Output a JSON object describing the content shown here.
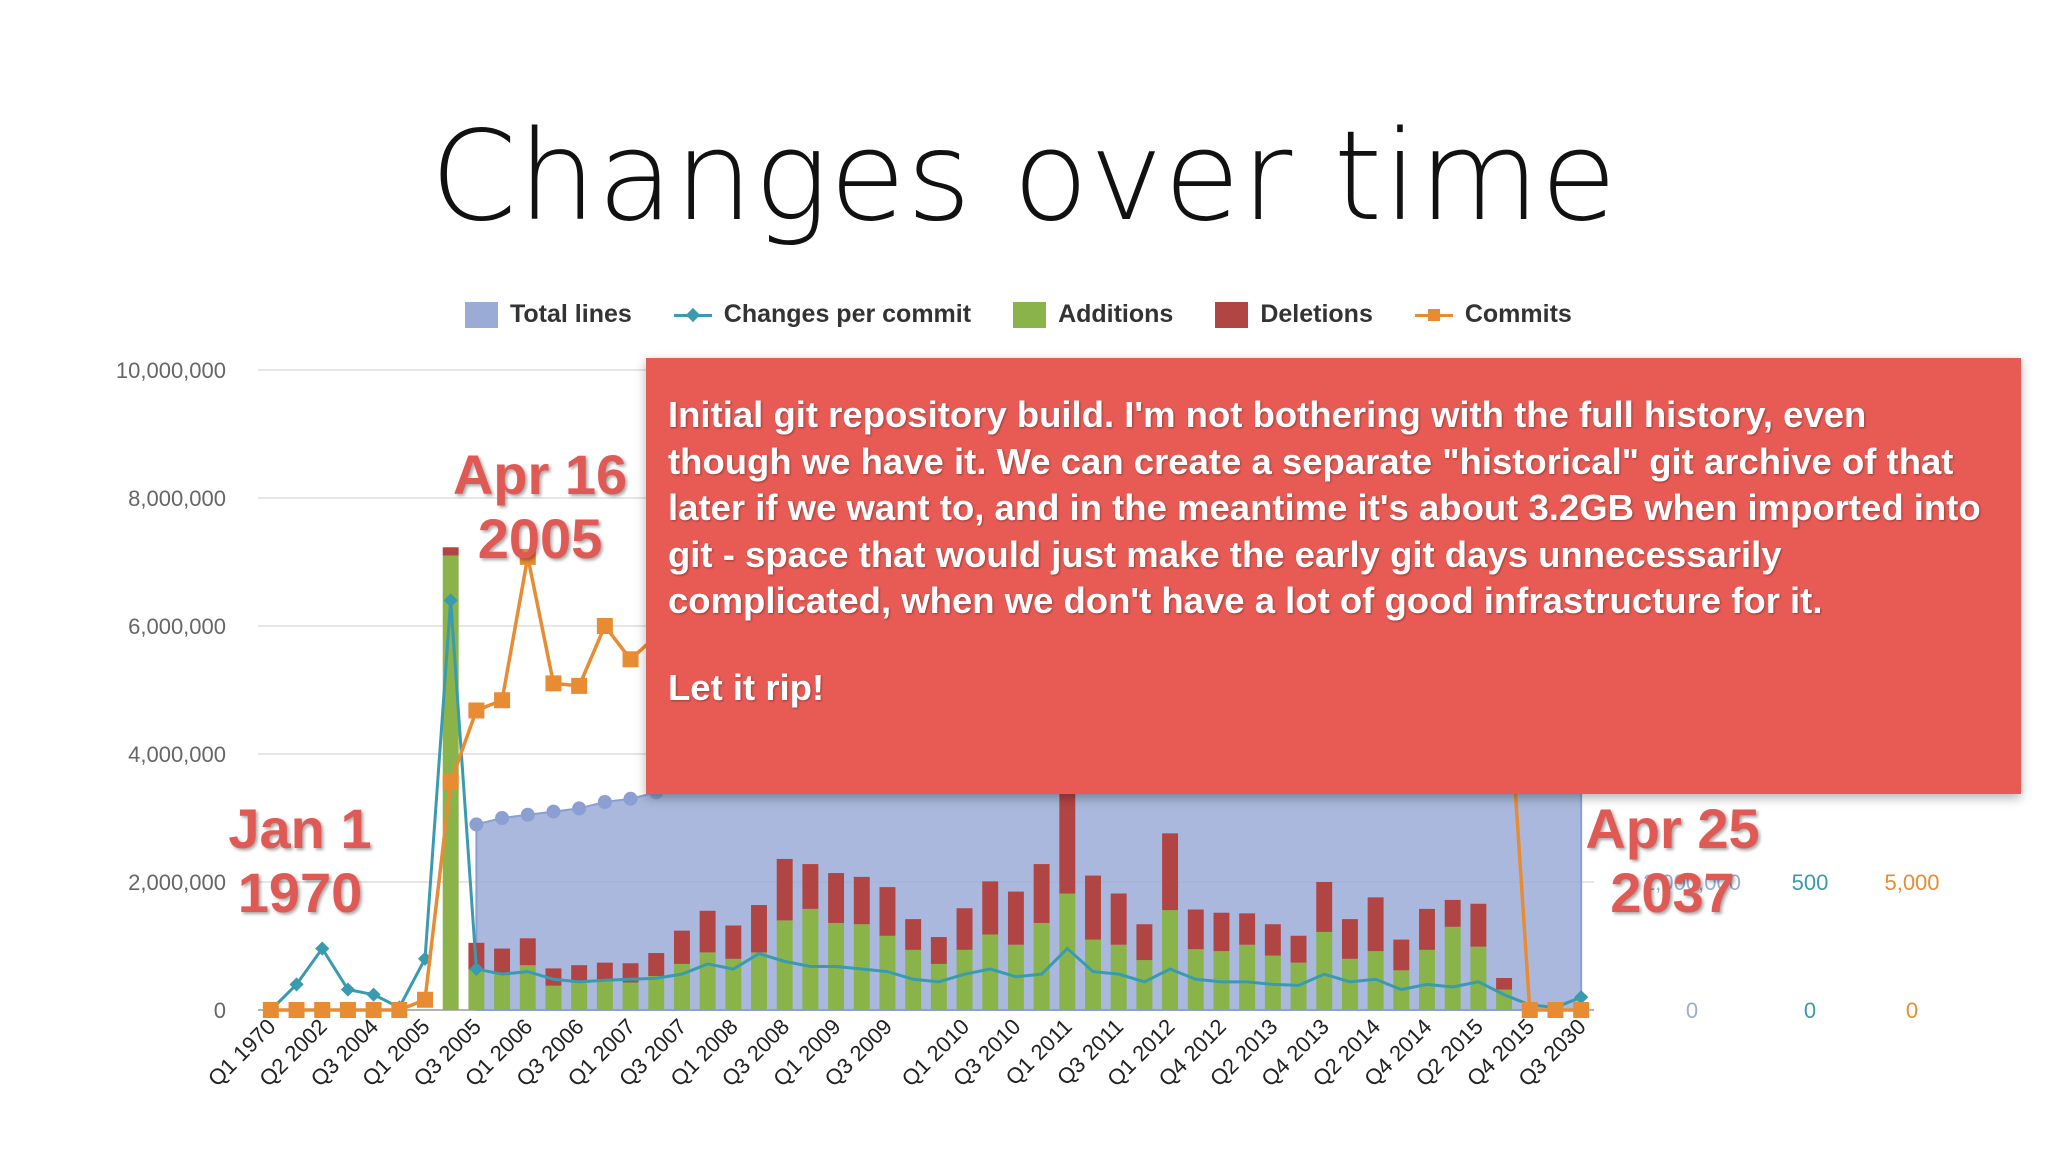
{
  "slide": {
    "title": "Changes over time"
  },
  "annotations": {
    "start": {
      "line1": "Jan 1",
      "line2": "1970"
    },
    "import": {
      "line1": "Apr 16",
      "line2": "2005"
    },
    "end": {
      "line1": "Apr 25",
      "line2": "2037"
    }
  },
  "popup": {
    "paragraph1": "Initial git repository build. I'm not bothering with the full history, even though we have it. We can create a separate \"historical\" git archive of that later if we want to, and in the meantime it's about 3.2GB when imported into git - space that would just make the early git days unnecessarily complicated, when we don't have a lot of good infrastructure for it.",
    "paragraph2": "Let it rip!"
  },
  "colors": {
    "total_lines": "#9aacd6",
    "changes_per_commit": "#3a9bb0",
    "additions": "#8ab449",
    "deletions": "#b04544",
    "commits": "#e88c33",
    "annotation": "#e05a55",
    "popup": "#e85b55"
  },
  "chart_data": {
    "type": "bar",
    "legend": [
      {
        "name": "Total lines",
        "style": "area"
      },
      {
        "name": "Changes per commit",
        "style": "line-diamond"
      },
      {
        "name": "Additions",
        "style": "bar"
      },
      {
        "name": "Deletions",
        "style": "bar"
      },
      {
        "name": "Commits",
        "style": "line-square"
      }
    ],
    "legend_position": "top",
    "grid": true,
    "x_tick_labels": [
      "Q1 1970",
      "Q2 2002",
      "Q3 2004",
      "Q1 2005",
      "Q3 2005",
      "Q1 2006",
      "Q3 2006",
      "Q1 2007",
      "Q3 2007",
      "Q1 2008",
      "Q3 2008",
      "Q1 2009",
      "Q3 2009",
      "Q1 2010",
      "Q3 2010",
      "Q1 2011",
      "Q3 2011",
      "Q1 2012",
      "Q4 2012",
      "Q2 2013",
      "Q4 2013",
      "Q2 2014",
      "Q4 2014",
      "Q2 2015",
      "Q4 2015",
      "Q3 2030"
    ],
    "y_left": {
      "ticks": [
        "10,000,000",
        "8,000,000",
        "6,000,000",
        "4,000,000",
        "2,000,000",
        "0"
      ],
      "ylim": [
        0,
        10000000
      ]
    },
    "y_right_changes": {
      "ticks": [
        "500",
        "0"
      ],
      "ylim": [
        0,
        1250
      ]
    },
    "y_right_commits": {
      "ticks": [
        "5,000",
        "0"
      ],
      "ylim": [
        0,
        12500
      ]
    },
    "y_right_total": {
      "ticks": [
        "2,000,000",
        "0"
      ]
    },
    "additions": [
      0,
      0,
      0,
      0,
      0,
      0,
      0,
      7100000,
      630000,
      580000,
      700000,
      380000,
      460000,
      480000,
      430000,
      530000,
      720000,
      900000,
      800000,
      900000,
      1400000,
      1580000,
      1360000,
      1340000,
      1160000,
      940000,
      720000,
      940000,
      1180000,
      1020000,
      1360000,
      1820000,
      1100000,
      1020000,
      780000,
      1560000,
      950000,
      920000,
      1020000,
      850000,
      740000,
      1220000,
      800000,
      920000,
      620000,
      940000,
      1300000,
      990000,
      320000,
      0,
      0,
      0
    ],
    "deletions": [
      0,
      0,
      0,
      0,
      0,
      0,
      0,
      130000,
      420000,
      380000,
      420000,
      270000,
      240000,
      260000,
      300000,
      360000,
      520000,
      650000,
      520000,
      740000,
      960000,
      700000,
      780000,
      740000,
      760000,
      480000,
      420000,
      650000,
      830000,
      830000,
      920000,
      2320000,
      1000000,
      800000,
      560000,
      1200000,
      620000,
      600000,
      490000,
      490000,
      420000,
      780000,
      620000,
      840000,
      480000,
      640000,
      420000,
      670000,
      180000,
      0,
      0,
      0
    ],
    "total_lines": [
      0,
      0,
      0,
      0,
      0,
      0,
      0,
      0,
      2900000,
      3000000,
      3050000,
      3100000,
      3150000,
      3250000,
      3300000,
      3400000,
      3450000,
      3500000,
      3550000,
      3600000,
      3650000,
      3700000,
      3750000,
      3800000,
      3850000,
      3900000,
      3950000,
      4000000,
      4050000,
      4100000,
      4150000,
      4200000,
      4250000,
      4300000,
      4350000,
      4400000,
      4450000,
      4500000,
      4550000,
      4600000,
      4650000,
      4700000,
      4750000,
      4800000,
      4850000,
      4900000,
      4950000,
      5000000,
      5050000,
      5100000,
      5150000,
      5200000
    ],
    "changes_per_commit": [
      0,
      50,
      120,
      40,
      30,
      5,
      100,
      800,
      80,
      70,
      75,
      60,
      55,
      58,
      60,
      62,
      70,
      90,
      80,
      110,
      95,
      85,
      85,
      80,
      75,
      60,
      55,
      70,
      80,
      65,
      70,
      120,
      75,
      70,
      55,
      80,
      60,
      55,
      55,
      50,
      48,
      70,
      55,
      60,
      40,
      50,
      45,
      55,
      30,
      10,
      5,
      25
    ],
    "commits": [
      0,
      0,
      0,
      0,
      0,
      0,
      200,
      4450,
      5850,
      6050,
      8850,
      6380,
      6330,
      7500,
      6850,
      7300,
      8200,
      9000,
      9500,
      9800,
      10100,
      10300,
      10600,
      10800,
      11000,
      11200,
      11400,
      11600,
      11800,
      12000,
      12200,
      12500,
      12500,
      12500,
      12500,
      12500,
      12500,
      12500,
      12500,
      12500,
      12500,
      12500,
      12500,
      12500,
      12500,
      12500,
      12500,
      12500,
      7600,
      0,
      0,
      0
    ]
  }
}
